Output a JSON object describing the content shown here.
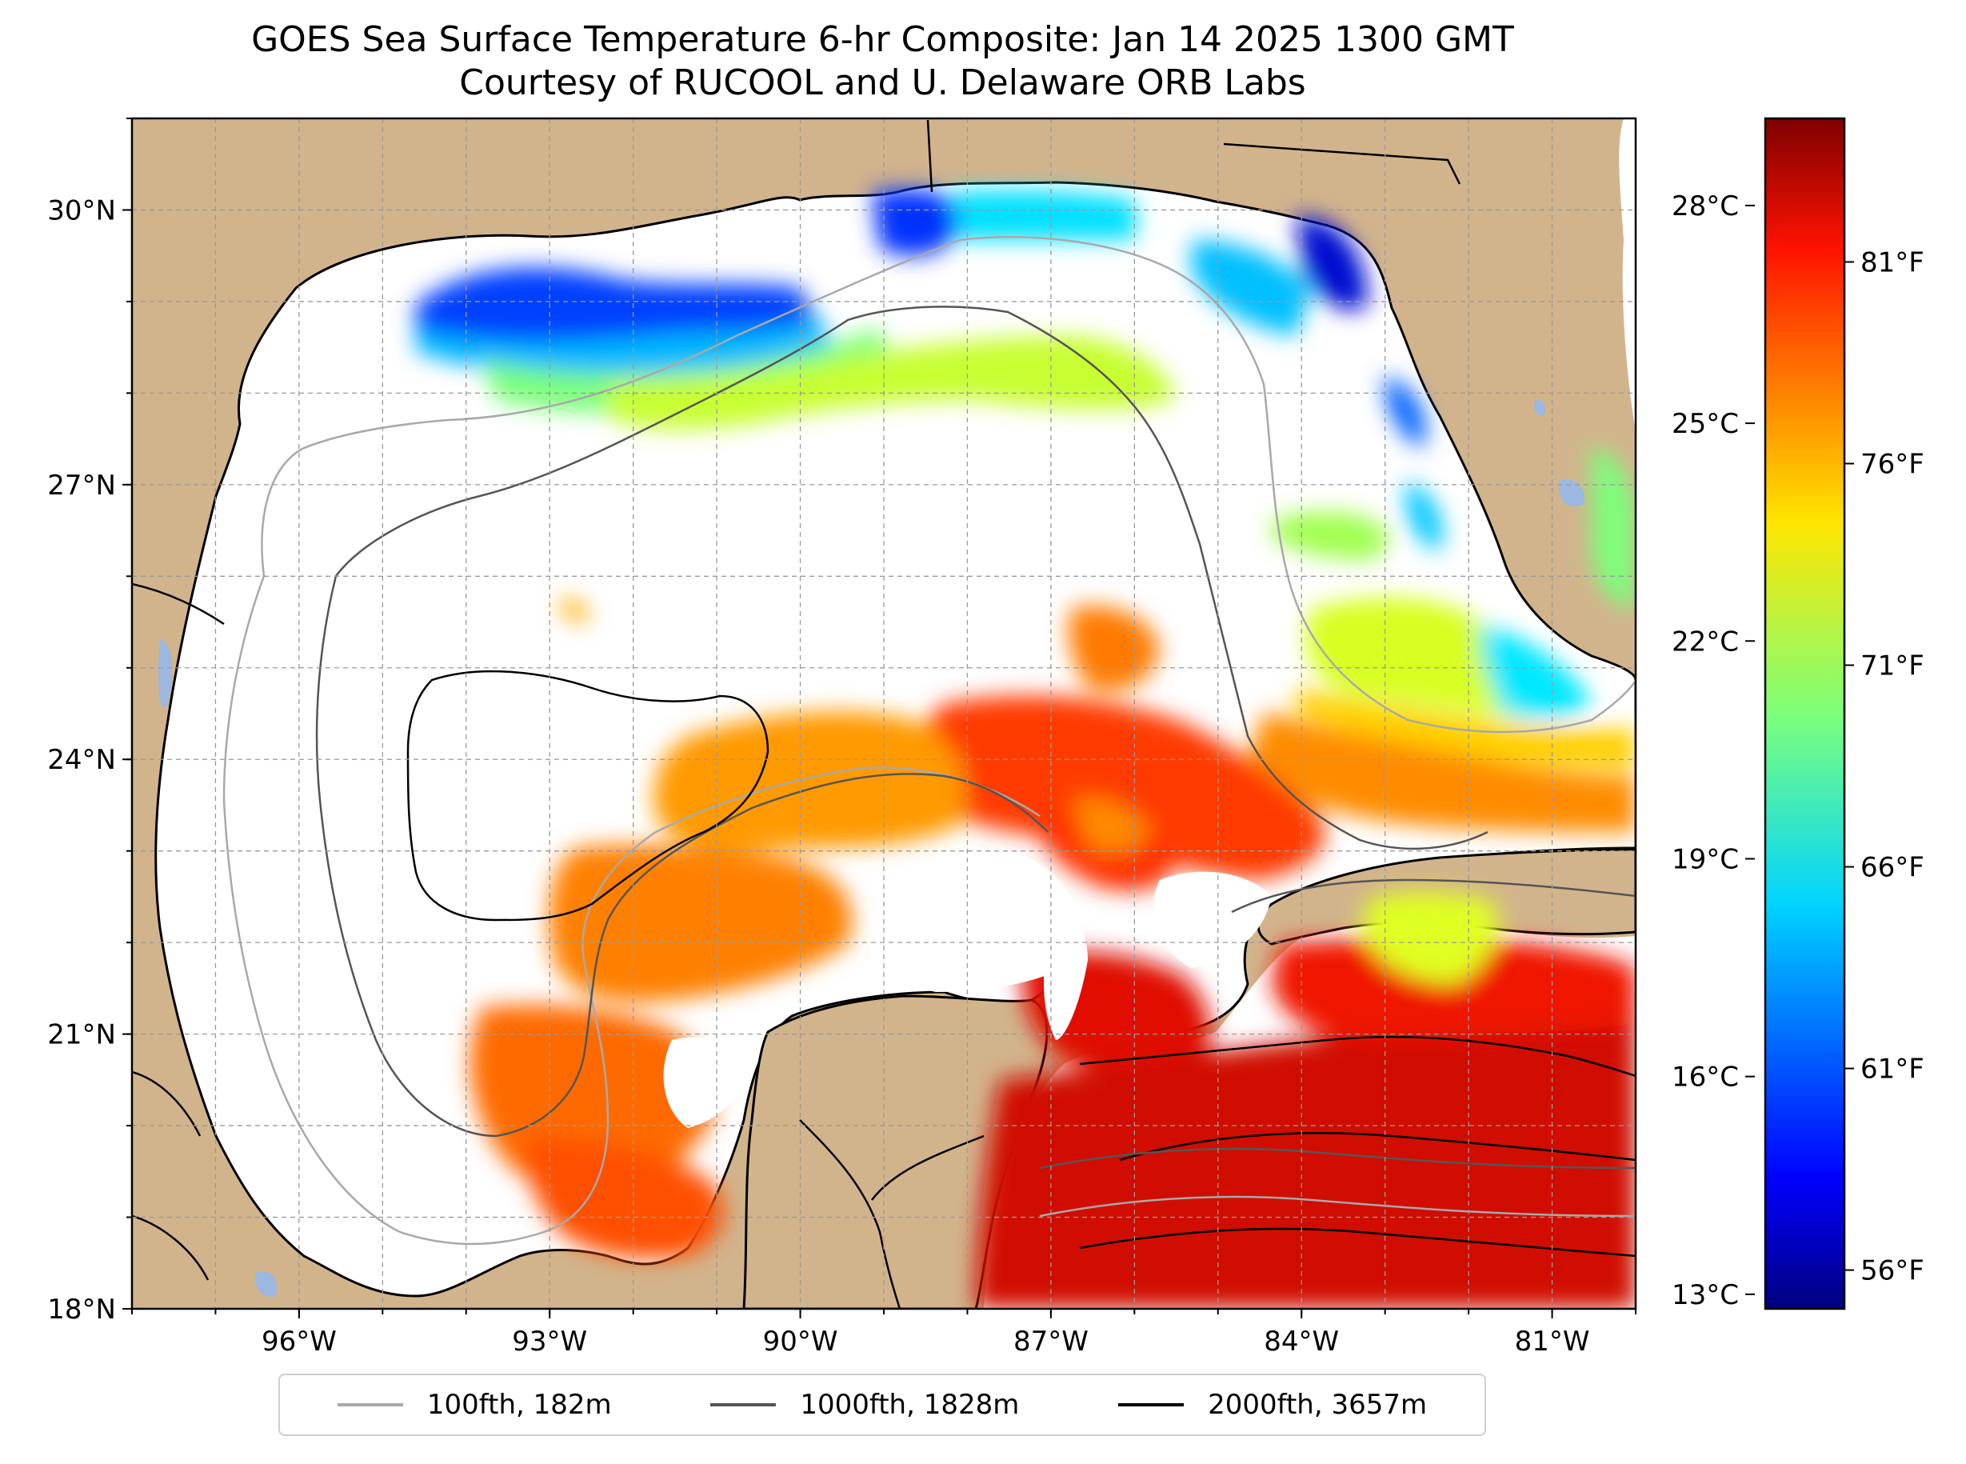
{
  "title": {
    "line1": "GOES Sea Surface Temperature 6-hr Composite: Jan 14 2025 1300 GMT",
    "line2": "Courtesy of RUCOOL and U. Delaware ORB Labs"
  },
  "map": {
    "extent": {
      "lon": [
        -98,
        -80
      ],
      "lat": [
        18,
        31
      ]
    },
    "lat_ticks": [
      {
        "value": 18,
        "label": "18°N"
      },
      {
        "value": 21,
        "label": "21°N"
      },
      {
        "value": 24,
        "label": "24°N"
      },
      {
        "value": 27,
        "label": "27°N"
      },
      {
        "value": 30,
        "label": "30°N"
      }
    ],
    "lon_ticks": [
      {
        "value": -96,
        "label": "96°W"
      },
      {
        "value": -93,
        "label": "93°W"
      },
      {
        "value": -90,
        "label": "90°W"
      },
      {
        "value": -87,
        "label": "87°W"
      },
      {
        "value": -84,
        "label": "84°W"
      },
      {
        "value": -81,
        "label": "81°W"
      }
    ],
    "land_color": "#d2b48c",
    "grid": true
  },
  "colorbar": {
    "range_c": [
      12.8,
      29.2
    ],
    "colormap": "jet",
    "celsius_ticks": [
      {
        "value": 13,
        "label": "13°C"
      },
      {
        "value": 16,
        "label": "16°C"
      },
      {
        "value": 19,
        "label": "19°C"
      },
      {
        "value": 22,
        "label": "22°C"
      },
      {
        "value": 25,
        "label": "25°C"
      },
      {
        "value": 28,
        "label": "28°C"
      }
    ],
    "fahrenheit_ticks": [
      {
        "value": 56,
        "label": "56°F"
      },
      {
        "value": 61,
        "label": "61°F"
      },
      {
        "value": 66,
        "label": "66°F"
      },
      {
        "value": 71,
        "label": "71°F"
      },
      {
        "value": 76,
        "label": "76°F"
      },
      {
        "value": 81,
        "label": "81°F"
      }
    ]
  },
  "legend": [
    {
      "label": "100fth, 182m",
      "color": "#a9a9a9"
    },
    {
      "label": "1000fth, 1828m",
      "color": "#555555"
    },
    {
      "label": "2000fth, 3657m",
      "color": "#000000"
    }
  ]
}
